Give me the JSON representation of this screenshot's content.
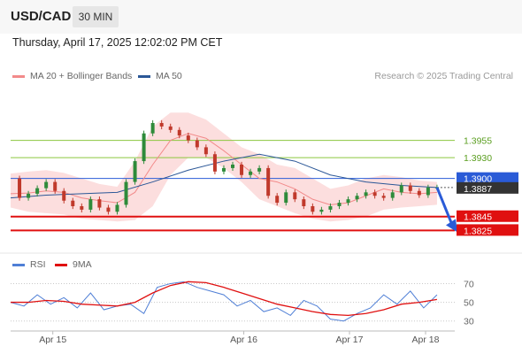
{
  "header": {
    "symbol": "USD/CAD",
    "timeframe": "30 MIN"
  },
  "datetime": "Thursday, April 17, 2025 12:02:02 PM CET",
  "legend": [
    {
      "label": "MA 20 + Bollinger Bands",
      "color": "#f28a8a"
    },
    {
      "label": "MA 50",
      "color": "#2b5797"
    }
  ],
  "credit": "Research © 2025 Trading Central",
  "rsi_legend": [
    {
      "label": "RSI",
      "color": "#4f7fd6"
    },
    {
      "label": "9MA",
      "color": "#e01010"
    }
  ],
  "chart_data": {
    "type": "line",
    "price_panel": {
      "x_tick_labels": [
        "Apr 15",
        "Apr 16",
        "Apr 17",
        "Apr 18"
      ],
      "ylim": [
        1.38,
        1.4017
      ],
      "levels": [
        {
          "label": "1.3955",
          "value": 1.3955,
          "kind": "resistance",
          "color": "#8cc63f"
        },
        {
          "label": "1.3930",
          "value": 1.393,
          "kind": "resistance",
          "color": "#8cc63f"
        },
        {
          "label": "1.3900",
          "value": 1.39,
          "kind": "pivot",
          "color": "#2a5bd7"
        },
        {
          "label": "1.3887",
          "value": 1.3887,
          "kind": "last-price",
          "color": "#333333"
        },
        {
          "label": "1.3845",
          "value": 1.3845,
          "kind": "support",
          "color": "#e01010"
        },
        {
          "label": "1.3825",
          "value": 1.3825,
          "kind": "support",
          "color": "#e01010"
        }
      ],
      "series": [
        {
          "name": "MA 20 + Bollinger Bands",
          "color": "#f28a8a",
          "x": [
            0,
            8,
            16,
            24,
            32,
            40,
            48,
            56,
            64,
            72,
            80,
            88,
            96,
            104,
            112,
            120,
            128,
            136,
            144,
            152,
            160,
            168,
            176,
            184,
            192
          ],
          "values": [
            1.3878,
            1.3879,
            1.3882,
            1.388,
            1.3872,
            1.3868,
            1.3865,
            1.388,
            1.392,
            1.3955,
            1.3965,
            1.3958,
            1.394,
            1.392,
            1.39,
            1.3895,
            1.3885,
            1.387,
            1.3862,
            1.3865,
            1.3875,
            1.3885,
            1.388,
            1.3878,
            1.388
          ],
          "upper": [
            1.3907,
            1.391,
            1.3912,
            1.3908,
            1.39,
            1.3892,
            1.3888,
            1.3925,
            1.3975,
            1.3995,
            1.3995,
            1.3985,
            1.3965,
            1.3945,
            1.3935,
            1.392,
            1.3915,
            1.39,
            1.3885,
            1.389,
            1.39,
            1.3905,
            1.3902,
            1.3897,
            1.3895
          ],
          "lower": [
            1.3858,
            1.3852,
            1.385,
            1.3848,
            1.3842,
            1.384,
            1.3838,
            1.384,
            1.386,
            1.3905,
            1.393,
            1.393,
            1.3915,
            1.3895,
            1.387,
            1.386,
            1.385,
            1.3842,
            1.3838,
            1.384,
            1.3845,
            1.3855,
            1.3858,
            1.386,
            1.3862
          ]
        },
        {
          "name": "MA 50",
          "color": "#2b5797",
          "x": [
            0,
            16,
            32,
            48,
            64,
            80,
            96,
            112,
            128,
            144,
            160,
            176,
            192
          ],
          "values": [
            1.3872,
            1.3876,
            1.3878,
            1.388,
            1.3895,
            1.3912,
            1.3925,
            1.3935,
            1.3925,
            1.3905,
            1.3895,
            1.389,
            1.3887
          ]
        },
        {
          "name": "Price",
          "color": "#222222",
          "x": [
            0,
            4,
            8,
            12,
            16,
            20,
            24,
            28,
            32,
            36,
            40,
            44,
            48,
            52,
            56,
            60,
            64,
            68,
            72,
            76,
            80,
            84,
            88,
            92,
            96,
            100,
            104,
            108,
            112,
            116,
            120,
            124,
            128,
            132,
            136,
            140,
            144,
            148,
            152,
            156,
            160,
            164,
            168,
            172,
            176,
            180,
            184,
            188,
            192
          ],
          "values": [
            1.39,
            1.3872,
            1.3878,
            1.3886,
            1.3895,
            1.3882,
            1.3868,
            1.386,
            1.3855,
            1.387,
            1.3858,
            1.3852,
            1.3862,
            1.3895,
            1.3925,
            1.3965,
            1.398,
            1.3975,
            1.397,
            1.3962,
            1.3955,
            1.3945,
            1.3935,
            1.391,
            1.3915,
            1.392,
            1.3905,
            1.391,
            1.3915,
            1.3875,
            1.3865,
            1.388,
            1.387,
            1.386,
            1.3852,
            1.3855,
            1.386,
            1.3865,
            1.387,
            1.3875,
            1.388,
            1.3875,
            1.3872,
            1.388,
            1.389,
            1.3882,
            1.3876,
            1.3887,
            1.3887
          ]
        }
      ],
      "projection": {
        "from": {
          "x": 192,
          "y": 1.3887
        },
        "to": {
          "x": 200,
          "y": 1.3825
        }
      }
    },
    "rsi_panel": {
      "ylim": [
        25,
        78
      ],
      "y_tick_labels": [
        "70",
        "50",
        "30"
      ],
      "y_ticks": [
        70,
        50,
        30
      ],
      "series": [
        {
          "name": "RSI",
          "color": "#4f7fd6",
          "x": [
            0,
            6,
            12,
            18,
            24,
            30,
            36,
            42,
            48,
            54,
            60,
            66,
            72,
            78,
            84,
            90,
            96,
            102,
            108,
            114,
            120,
            126,
            132,
            138,
            144,
            150,
            156,
            162,
            168,
            174,
            180,
            186,
            192
          ],
          "values": [
            50,
            46,
            58,
            48,
            55,
            44,
            60,
            42,
            46,
            48,
            38,
            66,
            70,
            72,
            66,
            62,
            58,
            46,
            52,
            40,
            44,
            36,
            52,
            46,
            32,
            30,
            38,
            44,
            58,
            48,
            62,
            44,
            58
          ]
        },
        {
          "name": "9MA",
          "color": "#e01010",
          "x": [
            0,
            8,
            16,
            24,
            32,
            40,
            48,
            56,
            64,
            72,
            80,
            88,
            96,
            104,
            112,
            120,
            128,
            136,
            144,
            152,
            160,
            168,
            176,
            184,
            192
          ],
          "values": [
            50,
            50,
            52,
            51,
            48,
            47,
            46,
            50,
            60,
            68,
            72,
            71,
            66,
            60,
            54,
            48,
            44,
            40,
            37,
            36,
            38,
            42,
            48,
            50,
            53
          ]
        }
      ]
    }
  }
}
